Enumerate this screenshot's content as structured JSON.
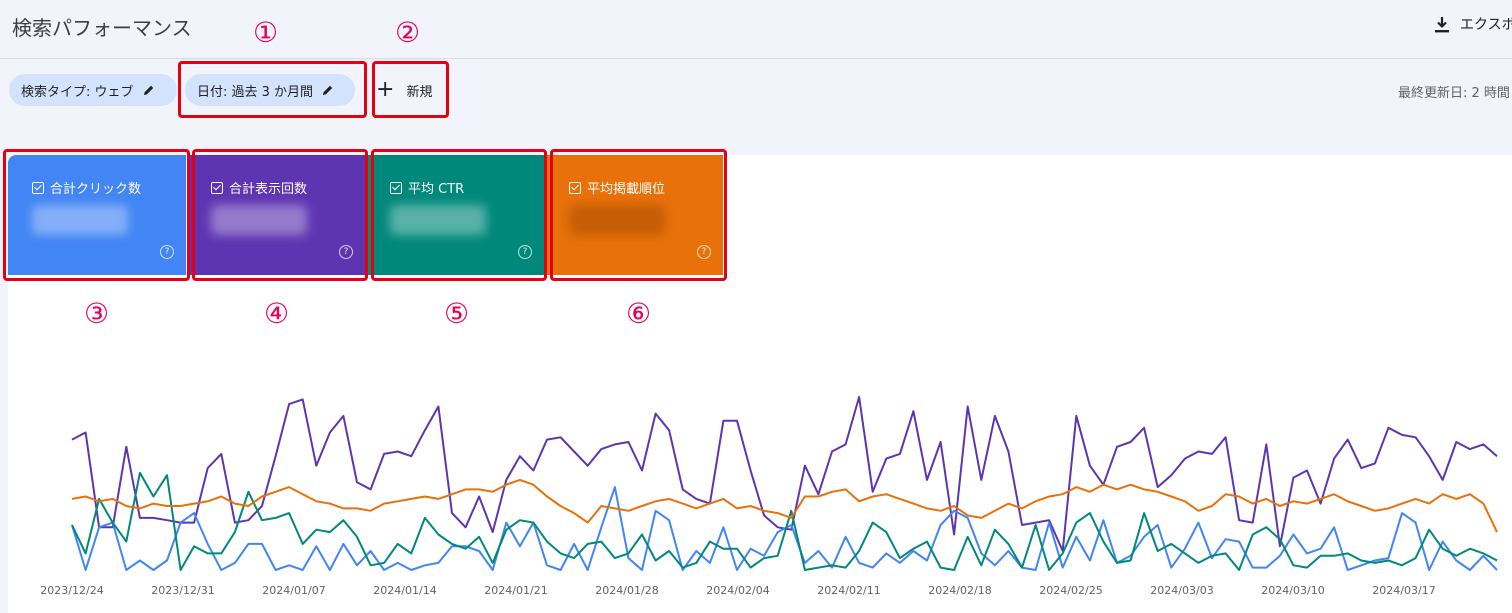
{
  "header": {
    "title": "検索パフォーマンス",
    "export_label": "エクスポ"
  },
  "filters": {
    "search_type": "検索タイプ: ウェブ",
    "date": "日付: 過去 3 か月間",
    "new_label": "新規",
    "last_updated": "最終更新日: 2 時間"
  },
  "cards": [
    {
      "label": "合計クリック数",
      "color": "#4285f4"
    },
    {
      "label": "合計表示回数",
      "color": "#5e35b1"
    },
    {
      "label": "平均 CTR",
      "color": "#00897b"
    },
    {
      "label": "平均掲載順位",
      "color": "#e8710a"
    }
  ],
  "annotations": [
    "①",
    "②",
    "③",
    "④",
    "⑤",
    "⑥"
  ],
  "icons": [
    "pencil-icon",
    "plus-icon",
    "download-icon",
    "checkbox-icon",
    "help-icon"
  ],
  "chart_data": {
    "type": "line",
    "x_labels": [
      "2023/12/24",
      "2023/12/31",
      "2024/01/07",
      "2024/01/14",
      "2024/01/21",
      "2024/01/28",
      "2024/02/04",
      "2024/02/11",
      "2024/02/18",
      "2024/02/25",
      "2024/03/03",
      "2024/03/10",
      "2024/03/17"
    ],
    "series": [
      {
        "color": "#5e35b1",
        "values": [
          45,
          42,
          82,
          82,
          48,
          78,
          78,
          79,
          80,
          80,
          57,
          51,
          80,
          79,
          73,
          52,
          30,
          28,
          56,
          42,
          35,
          63,
          66,
          51,
          50,
          52,
          41,
          31,
          76,
          82,
          69,
          84,
          62,
          52,
          58,
          45,
          44,
          50,
          56,
          49,
          47,
          46,
          58,
          34,
          41,
          66,
          70,
          72,
          37,
          37,
          58,
          77,
          82,
          83,
          56,
          68,
          50,
          47,
          27,
          67,
          53,
          51,
          33,
          62,
          46,
          85,
          31,
          62,
          35,
          50,
          81,
          80,
          79,
          92,
          35,
          56,
          64,
          48,
          46,
          40,
          65,
          60,
          53,
          50,
          51,
          44,
          79,
          80,
          47,
          90,
          61,
          58,
          72,
          53,
          45,
          57,
          55,
          40,
          43,
          44,
          52,
          62,
          46,
          49,
          47,
          52
        ]
      },
      {
        "color": "#4285f4",
        "values": [
          81,
          100,
          82,
          80,
          100,
          96,
          100,
          96,
          80,
          76,
          89,
          100,
          97,
          89,
          89,
          100,
          98,
          100,
          90,
          100,
          89,
          98,
          92,
          100,
          97,
          100,
          98,
          97,
          90,
          90,
          92,
          100,
          80,
          90,
          80,
          98,
          100,
          89,
          100,
          82,
          65,
          95,
          100,
          75,
          79,
          100,
          92,
          97,
          82,
          100,
          91,
          94,
          84,
          81,
          97,
          92,
          99,
          86,
          97,
          99,
          93,
          97,
          92,
          96,
          81,
          75,
          78,
          93,
          98,
          92,
          99,
          100,
          80,
          99,
          86,
          96,
          79,
          97,
          94,
          86,
          81,
          99,
          91,
          80,
          95,
          87,
          88,
          99,
          99,
          94,
          85,
          93,
          91,
          82,
          100,
          98,
          96,
          95,
          76,
          80,
          100,
          88,
          96,
          100,
          94,
          100
        ]
      },
      {
        "color": "#00897b",
        "values": [
          81,
          93,
          70,
          80,
          88,
          59,
          69,
          60,
          100,
          90,
          93,
          93,
          84,
          67,
          79,
          78,
          76,
          89,
          83,
          84,
          79,
          86,
          98,
          97,
          89,
          93,
          78,
          85,
          89,
          91,
          86,
          97,
          83,
          79,
          80,
          88,
          93,
          95,
          89,
          88,
          95,
          93,
          85,
          96,
          92,
          99,
          97,
          88,
          91,
          91,
          99,
          95,
          94,
          75,
          100,
          99,
          98,
          99,
          92,
          80,
          84,
          95,
          91,
          88,
          99,
          100,
          86,
          98,
          83,
          89,
          99,
          81,
          100,
          93,
          80,
          76,
          88,
          97,
          96,
          76,
          92,
          89,
          93,
          97,
          94,
          93,
          100,
          85,
          82,
          87,
          98,
          99,
          94,
          94,
          93,
          96,
          97,
          96,
          98,
          95,
          83,
          91,
          94,
          91,
          93,
          96
        ]
      },
      {
        "color": "#e8710a",
        "values": [
          70,
          69,
          71,
          70,
          73,
          74,
          72,
          73,
          73,
          72,
          71,
          69,
          72,
          73,
          69,
          67,
          65,
          68,
          71,
          72,
          74,
          74,
          75,
          72,
          71,
          70,
          69,
          70,
          68,
          66,
          66,
          67,
          64,
          62,
          64,
          69,
          73,
          76,
          80,
          73,
          74,
          75,
          73,
          71,
          70,
          72,
          74,
          72,
          70,
          74,
          73,
          75,
          76,
          78,
          69,
          69,
          67,
          66,
          71,
          69,
          68,
          70,
          72,
          74,
          75,
          73,
          77,
          78,
          75,
          72,
          74,
          71,
          69,
          68,
          65,
          67,
          64,
          66,
          64,
          66,
          67,
          69,
          71,
          75,
          73,
          68,
          69,
          72,
          70,
          73,
          71,
          72,
          70,
          68,
          71,
          73,
          75,
          74,
          72,
          70,
          72,
          68,
          70,
          68,
          72,
          84
        ]
      }
    ]
  }
}
